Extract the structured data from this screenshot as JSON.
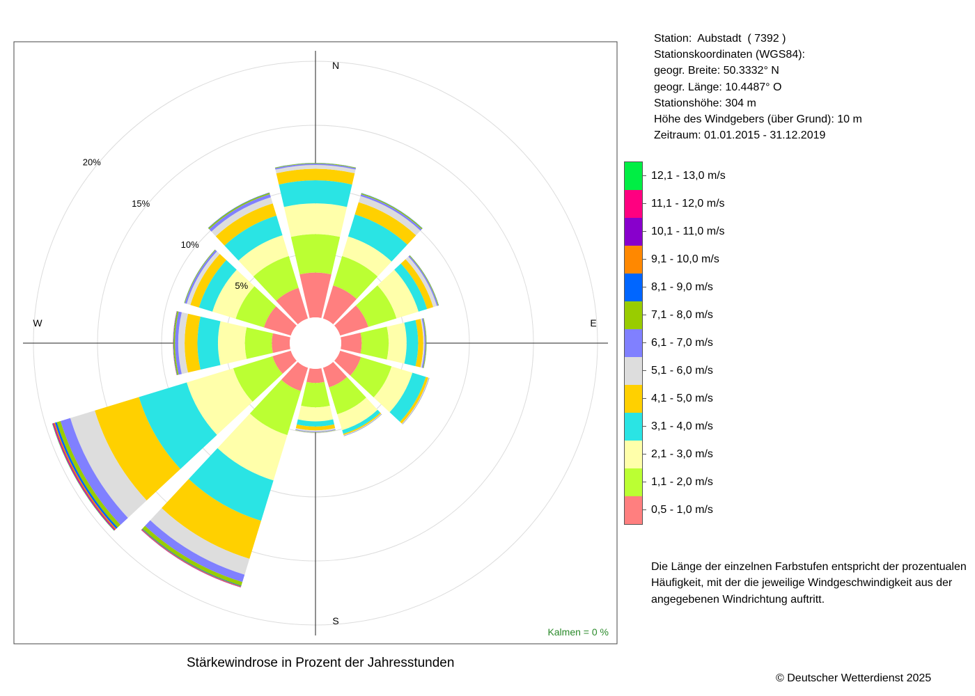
{
  "station": {
    "line1": "Station:  Aubstadt  ( 7392 )",
    "line2": "Stationskoordinaten (WGS84):",
    "line3": "geogr. Breite: 50.3332° N",
    "line4": "geogr. Länge: 10.4487° O",
    "line5": "Stationshöhe: 304 m",
    "line6": "Höhe des Windgebers (über Grund): 10 m",
    "line7": "Zeitraum: 01.01.2015 - 31.12.2019"
  },
  "legend": {
    "classes": [
      {
        "label": "12,1 - 13,0 m/s",
        "color": "#00ee44"
      },
      {
        "label": "11,1 - 12,0 m/s",
        "color": "#ff0080"
      },
      {
        "label": "10,1 - 11,0 m/s",
        "color": "#8800cc"
      },
      {
        "label": "9,1 - 10,0 m/s",
        "color": "#ff8800"
      },
      {
        "label": "8,1 - 9,0 m/s",
        "color": "#0066ff"
      },
      {
        "label": "7,1 - 8,0 m/s",
        "color": "#99cc00"
      },
      {
        "label": "6,1 - 7,0 m/s",
        "color": "#8080ff"
      },
      {
        "label": "5,1 - 6,0 m/s",
        "color": "#dddddd"
      },
      {
        "label": "4,1 - 5,0 m/s",
        "color": "#ffd000"
      },
      {
        "label": "3,1 - 4,0 m/s",
        "color": "#2ae4e4"
      },
      {
        "label": "2,1 - 3,0 m/s",
        "color": "#ffffaa"
      },
      {
        "label": "1,1 - 2,0 m/s",
        "color": "#bbff33"
      },
      {
        "label": "0,5 - 1,0 m/s",
        "color": "#ff7f7f"
      }
    ]
  },
  "note": "Die Länge der einzelnen Farbstufen entspricht der prozentualen Häufigkeit, mit der die jeweilige Windgeschwindigkeit aus der angegebenen Windrichtung auftritt.",
  "caption": "Stärkewindrose in Prozent der Jahresstunden",
  "copyright": "© Deutscher Wetterdienst  2025",
  "calm_label": "Kalmen  =  0 %",
  "chart_data": {
    "type": "polar-stacked-bar",
    "title": "Stärkewindrose in Prozent der Jahresstunden",
    "unit": "%",
    "radial_ticks": [
      "5%",
      "10%",
      "15%",
      "20%"
    ],
    "radial_tick_values": [
      5,
      10,
      15,
      20
    ],
    "direction_labels": [
      "N",
      "E",
      "S",
      "W"
    ],
    "calm_percent": 0,
    "sectors_deg": [
      0,
      30,
      60,
      90,
      120,
      150,
      180,
      210,
      240,
      270,
      300,
      330
    ],
    "series": [
      {
        "name": "0,5 - 1,0 m/s",
        "values": [
          3.5,
          2.7,
          2.3,
          1.6,
          1.7,
          1.6,
          1.1,
          1.9,
          1.5,
          1.4,
          2.2,
          2.5
        ]
      },
      {
        "name": "1,1 - 2,0 m/s",
        "values": [
          3.0,
          2.4,
          2.3,
          2.1,
          2.5,
          2.2,
          1.9,
          3.6,
          3.2,
          2.1,
          2.3,
          2.6
        ]
      },
      {
        "name": "2,1 - 3,0 m/s",
        "values": [
          2.4,
          1.6,
          1.8,
          1.4,
          1.7,
          1.3,
          1.1,
          3.7,
          3.8,
          2.1,
          1.9,
          1.7
        ]
      },
      {
        "name": "3,1 - 4,0 m/s",
        "values": [
          1.8,
          1.8,
          0.7,
          0.9,
          1.1,
          0.3,
          0.4,
          3.3,
          3.9,
          1.6,
          1.1,
          1.6
        ]
      },
      {
        "name": "4,1 - 5,0 m/s",
        "values": [
          0.9,
          1.0,
          0.5,
          0.4,
          0.2,
          0.1,
          0.3,
          3.1,
          3.6,
          1.0,
          0.7,
          1.0
        ]
      },
      {
        "name": "5,1 - 6,0 m/s",
        "values": [
          0.3,
          0.5,
          0.3,
          0.1,
          0.05,
          0.05,
          0.1,
          1.3,
          2.0,
          0.5,
          0.3,
          0.5
        ]
      },
      {
        "name": "6,1 - 7,0 m/s",
        "values": [
          0.1,
          0.15,
          0.1,
          0.1,
          0.03,
          0.03,
          0.05,
          0.6,
          0.8,
          0.25,
          0.15,
          0.25
        ]
      },
      {
        "name": "7,1 - 8,0 m/s",
        "values": [
          0.05,
          0.08,
          0.05,
          0.05,
          0.01,
          0.01,
          0.02,
          0.3,
          0.3,
          0.1,
          0.05,
          0.1
        ]
      },
      {
        "name": "8,1 - 9,0 m/s",
        "values": [
          0.01,
          0.02,
          0.01,
          0.01,
          0,
          0,
          0,
          0.05,
          0.15,
          0.03,
          0.01,
          0.03
        ]
      },
      {
        "name": "9,1 - 10,0 m/s",
        "values": [
          0,
          0,
          0,
          0,
          0,
          0,
          0,
          0.05,
          0.1,
          0.02,
          0,
          0.01
        ]
      },
      {
        "name": "10,1 - 11,0 m/s",
        "values": [
          0,
          0,
          0,
          0,
          0,
          0,
          0,
          0.03,
          0.05,
          0.01,
          0,
          0
        ]
      },
      {
        "name": "11,1 - 12,0 m/s",
        "values": [
          0,
          0,
          0,
          0,
          0,
          0,
          0,
          0.01,
          0.05,
          0,
          0,
          0
        ]
      },
      {
        "name": "12,1 - 13,0 m/s",
        "values": [
          0,
          0,
          0,
          0,
          0,
          0,
          0,
          0,
          0.03,
          0,
          0,
          0
        ]
      }
    ]
  }
}
